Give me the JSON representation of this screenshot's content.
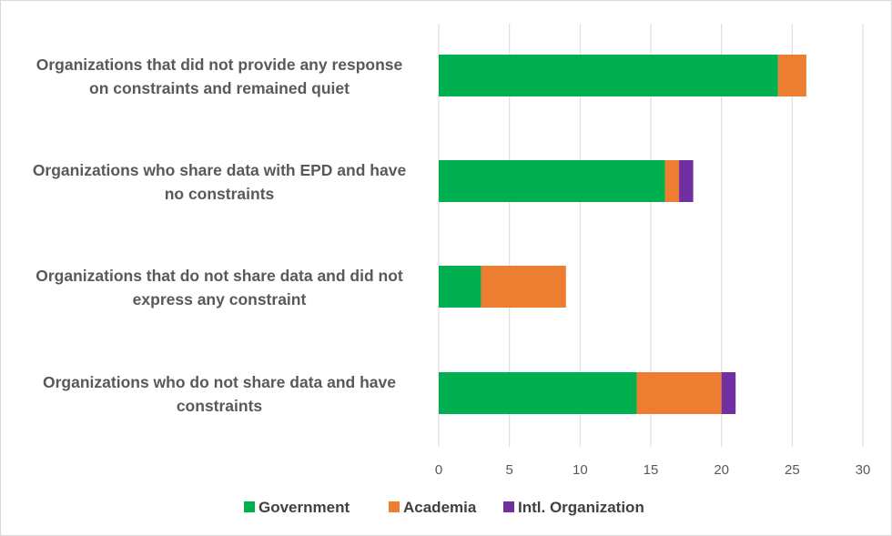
{
  "chart_data": {
    "type": "bar",
    "orientation": "horizontal",
    "stacked": true,
    "categories": [
      [
        "Organizations that did not provide any response",
        "on constraints and remained quiet"
      ],
      [
        "Organizations who share data with EPD and have",
        "no constraints"
      ],
      [
        "Organizations that do not share data and did not",
        "express any constraint"
      ],
      [
        "Organizations who do not share data and have",
        "constraints"
      ]
    ],
    "series": [
      {
        "name": "Government",
        "color": "#00b050",
        "values": [
          24,
          16,
          3,
          14
        ]
      },
      {
        "name": "Academia",
        "color": "#ed7d31",
        "values": [
          2,
          1,
          6,
          6
        ]
      },
      {
        "name": "Intl. Organization",
        "color": "#7030a0",
        "values": [
          0,
          1,
          0,
          1
        ]
      }
    ],
    "x_ticks": [
      0,
      5,
      10,
      15,
      20,
      25,
      30
    ],
    "xlim": [
      0,
      30
    ],
    "grid": "vertical",
    "legend_position": "bottom",
    "title": "",
    "xlabel": "",
    "ylabel": ""
  }
}
